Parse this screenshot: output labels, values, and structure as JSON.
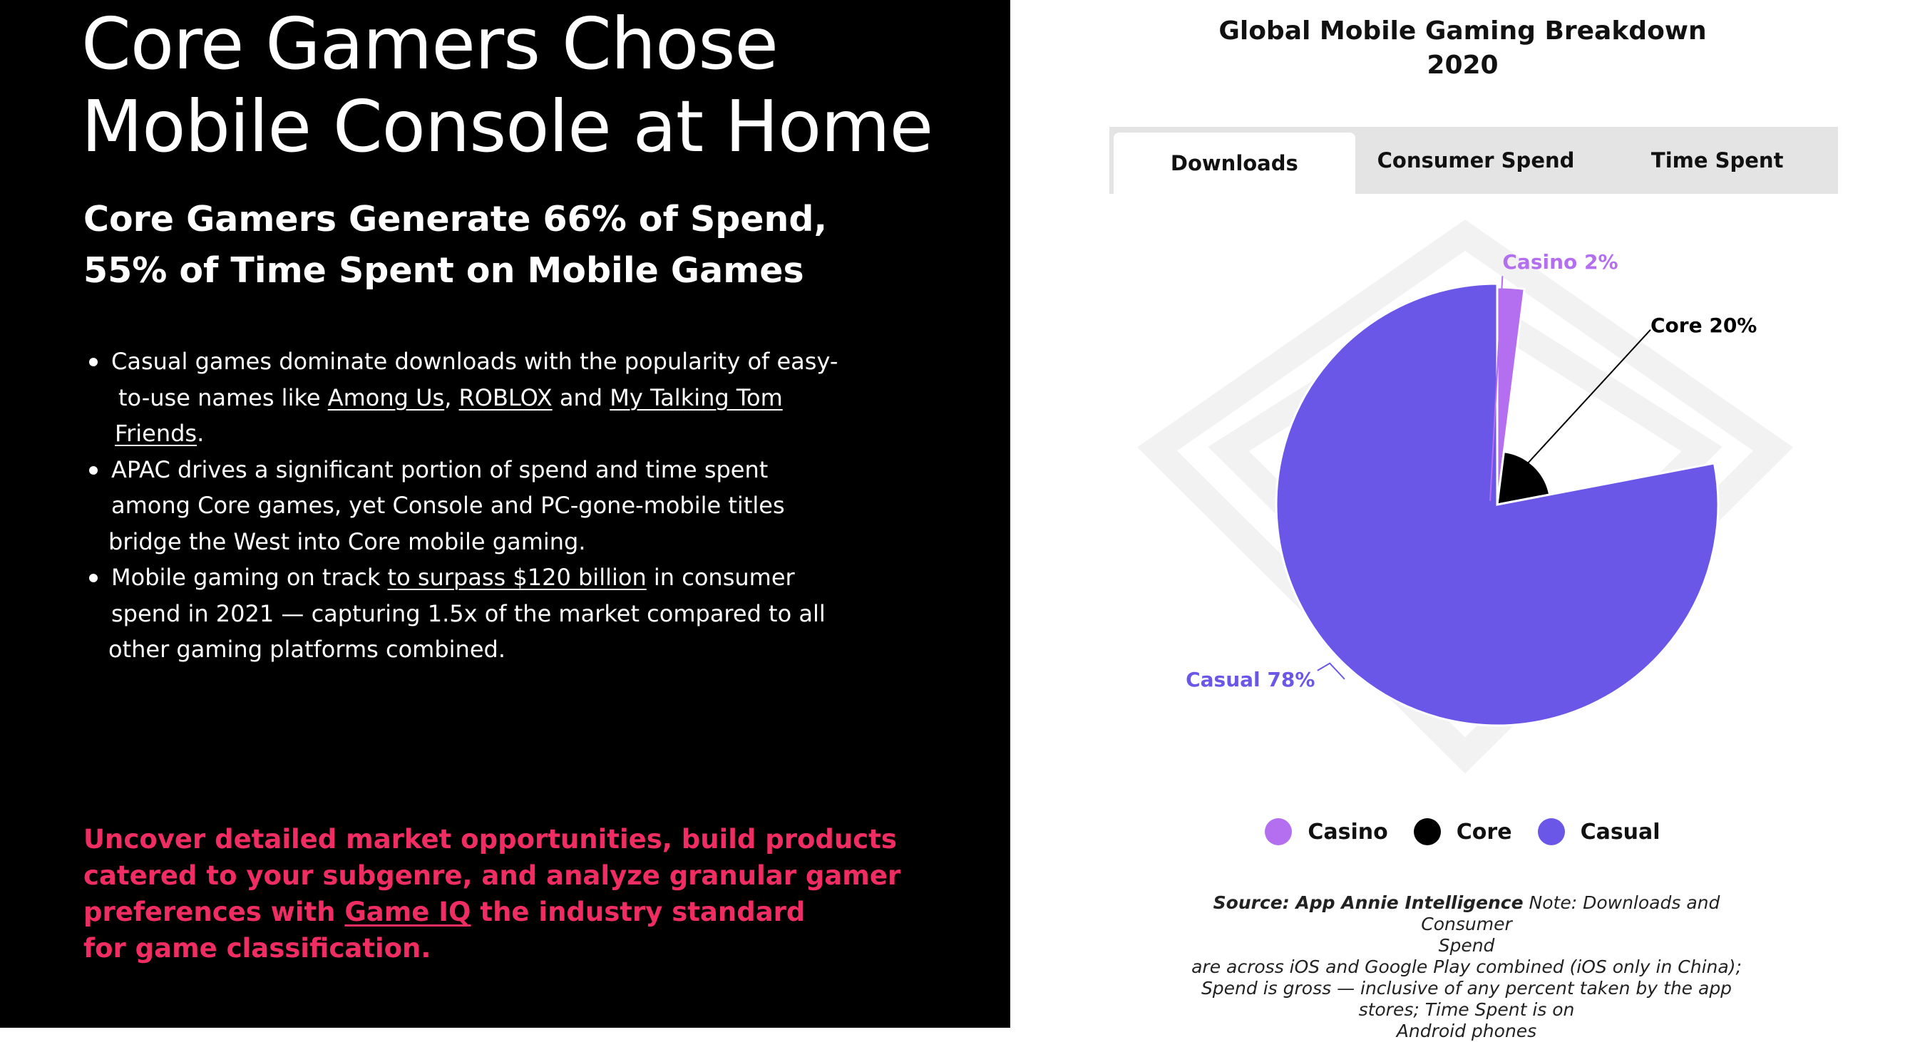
{
  "left": {
    "headline": [
      "Core Gamers Chose",
      "Mobile Console at Home"
    ],
    "subhead": [
      "Core Gamers Generate 66% of Spend,",
      "55% of Time Spent on Mobile Games"
    ],
    "bullet1": {
      "t1": "Casual games dominate downloads with the popularity of easy-",
      "t2": "to-use names like ",
      "link1": "Among Us",
      "t3": ", ",
      "link2": "ROBLOX",
      "t4": " and ",
      "link3": "My Talking Tom",
      "link3b": "Friends",
      "t5": "."
    },
    "bullet2": {
      "t1": "APAC drives a significant portion of spend and time spent",
      "t2": "among Core games, yet Console and PC-gone-mobile titles",
      "t3": "bridge the West into Core mobile gaming."
    },
    "bullet3": {
      "t1": "Mobile gaming on track ",
      "link": "to surpass $120 billion",
      "t2": " in consumer",
      "t3": "spend in 2021 — capturing 1.5x of the market compared to all",
      "t4": "other gaming platforms combined."
    },
    "cta": {
      "l1": "Uncover detailed market opportunities, build products",
      "l2": "catered to your subgenre, and analyze granular gamer",
      "l3a": "preferences with ",
      "link": "Game IQ",
      "l3b": " the industry standard",
      "l4": "for game classification."
    }
  },
  "chart_panel": {
    "title": [
      "Global Mobile Gaming Breakdown",
      "2020"
    ],
    "tabs": [
      "Downloads",
      "Consumer Spend",
      "Time Spent"
    ],
    "active_tab": "Downloads",
    "source_bold": "Source: App Annie Intelligence",
    "source_lines": [
      " Note: Downloads and Consumer",
      "Spend",
      "are across iOS and Google Play combined (iOS only in China);",
      "Spend is gross — inclusive of any percent taken by the app",
      "stores; Time Spent is on",
      "Android phones"
    ]
  },
  "chart_data": {
    "type": "pie",
    "title": "Global Mobile Gaming Breakdown 2020",
    "categories": [
      "Casino",
      "Core",
      "Casual"
    ],
    "values": [
      2,
      20,
      78
    ],
    "unit": "%",
    "data_labels": [
      "Casino 2%",
      "Core 20%",
      "Casual 78%"
    ],
    "colors": [
      "#b46ef0",
      "#000000",
      "#6a57e8"
    ],
    "legend_position": "bottom"
  }
}
